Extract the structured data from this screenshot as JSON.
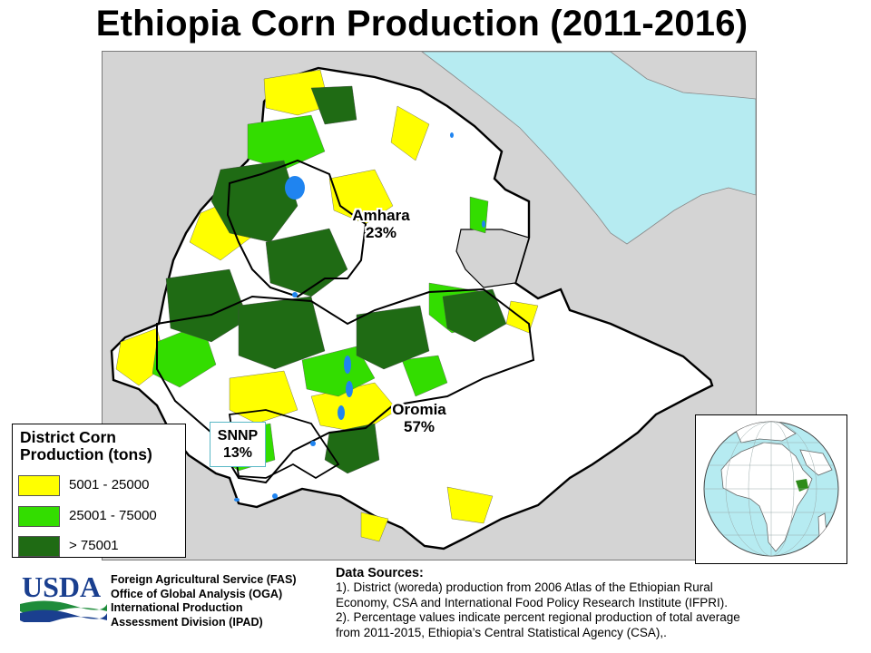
{
  "title": "Ethiopia Corn Production (2011-2016)",
  "regions": [
    {
      "name": "Amhara",
      "share": "23%"
    },
    {
      "name": "Oromia",
      "share": "57%"
    },
    {
      "name": "SNNP",
      "share": "13%"
    }
  ],
  "legend": {
    "title_line1": "District Corn",
    "title_line2": "Production (tons)",
    "items": [
      {
        "label": "5001 - 25000",
        "color": "#ffff00"
      },
      {
        "label": "25001 - 75000",
        "color": "#33dd00"
      },
      {
        "label": "> 75001",
        "color": "#1f6b14"
      }
    ]
  },
  "colors": {
    "water": "#b6ebf1",
    "country": "#ffffff",
    "neighbor": "#d4d4d4",
    "border": "#000000",
    "lake": "#1f84f0"
  },
  "agency": {
    "logo_text": "USDA",
    "lines": [
      "Foreign Agricultural Service (FAS)",
      "Office of Global Analysis  (OGA)",
      "International Production",
      "Assessment Division (IPAD)"
    ]
  },
  "sources": {
    "heading": "Data Sources:",
    "lines": [
      "1). District (woreda) production from 2006 Atlas of the Ethiopian Rural",
      "Economy, CSA and International  Food Policy Research Institute  (IFPRI).",
      "2). Percentage values  indicate percent regional production of total average",
      "from 2011-2015, Ethiopia’s Central Statistical Agency (CSA),."
    ]
  }
}
